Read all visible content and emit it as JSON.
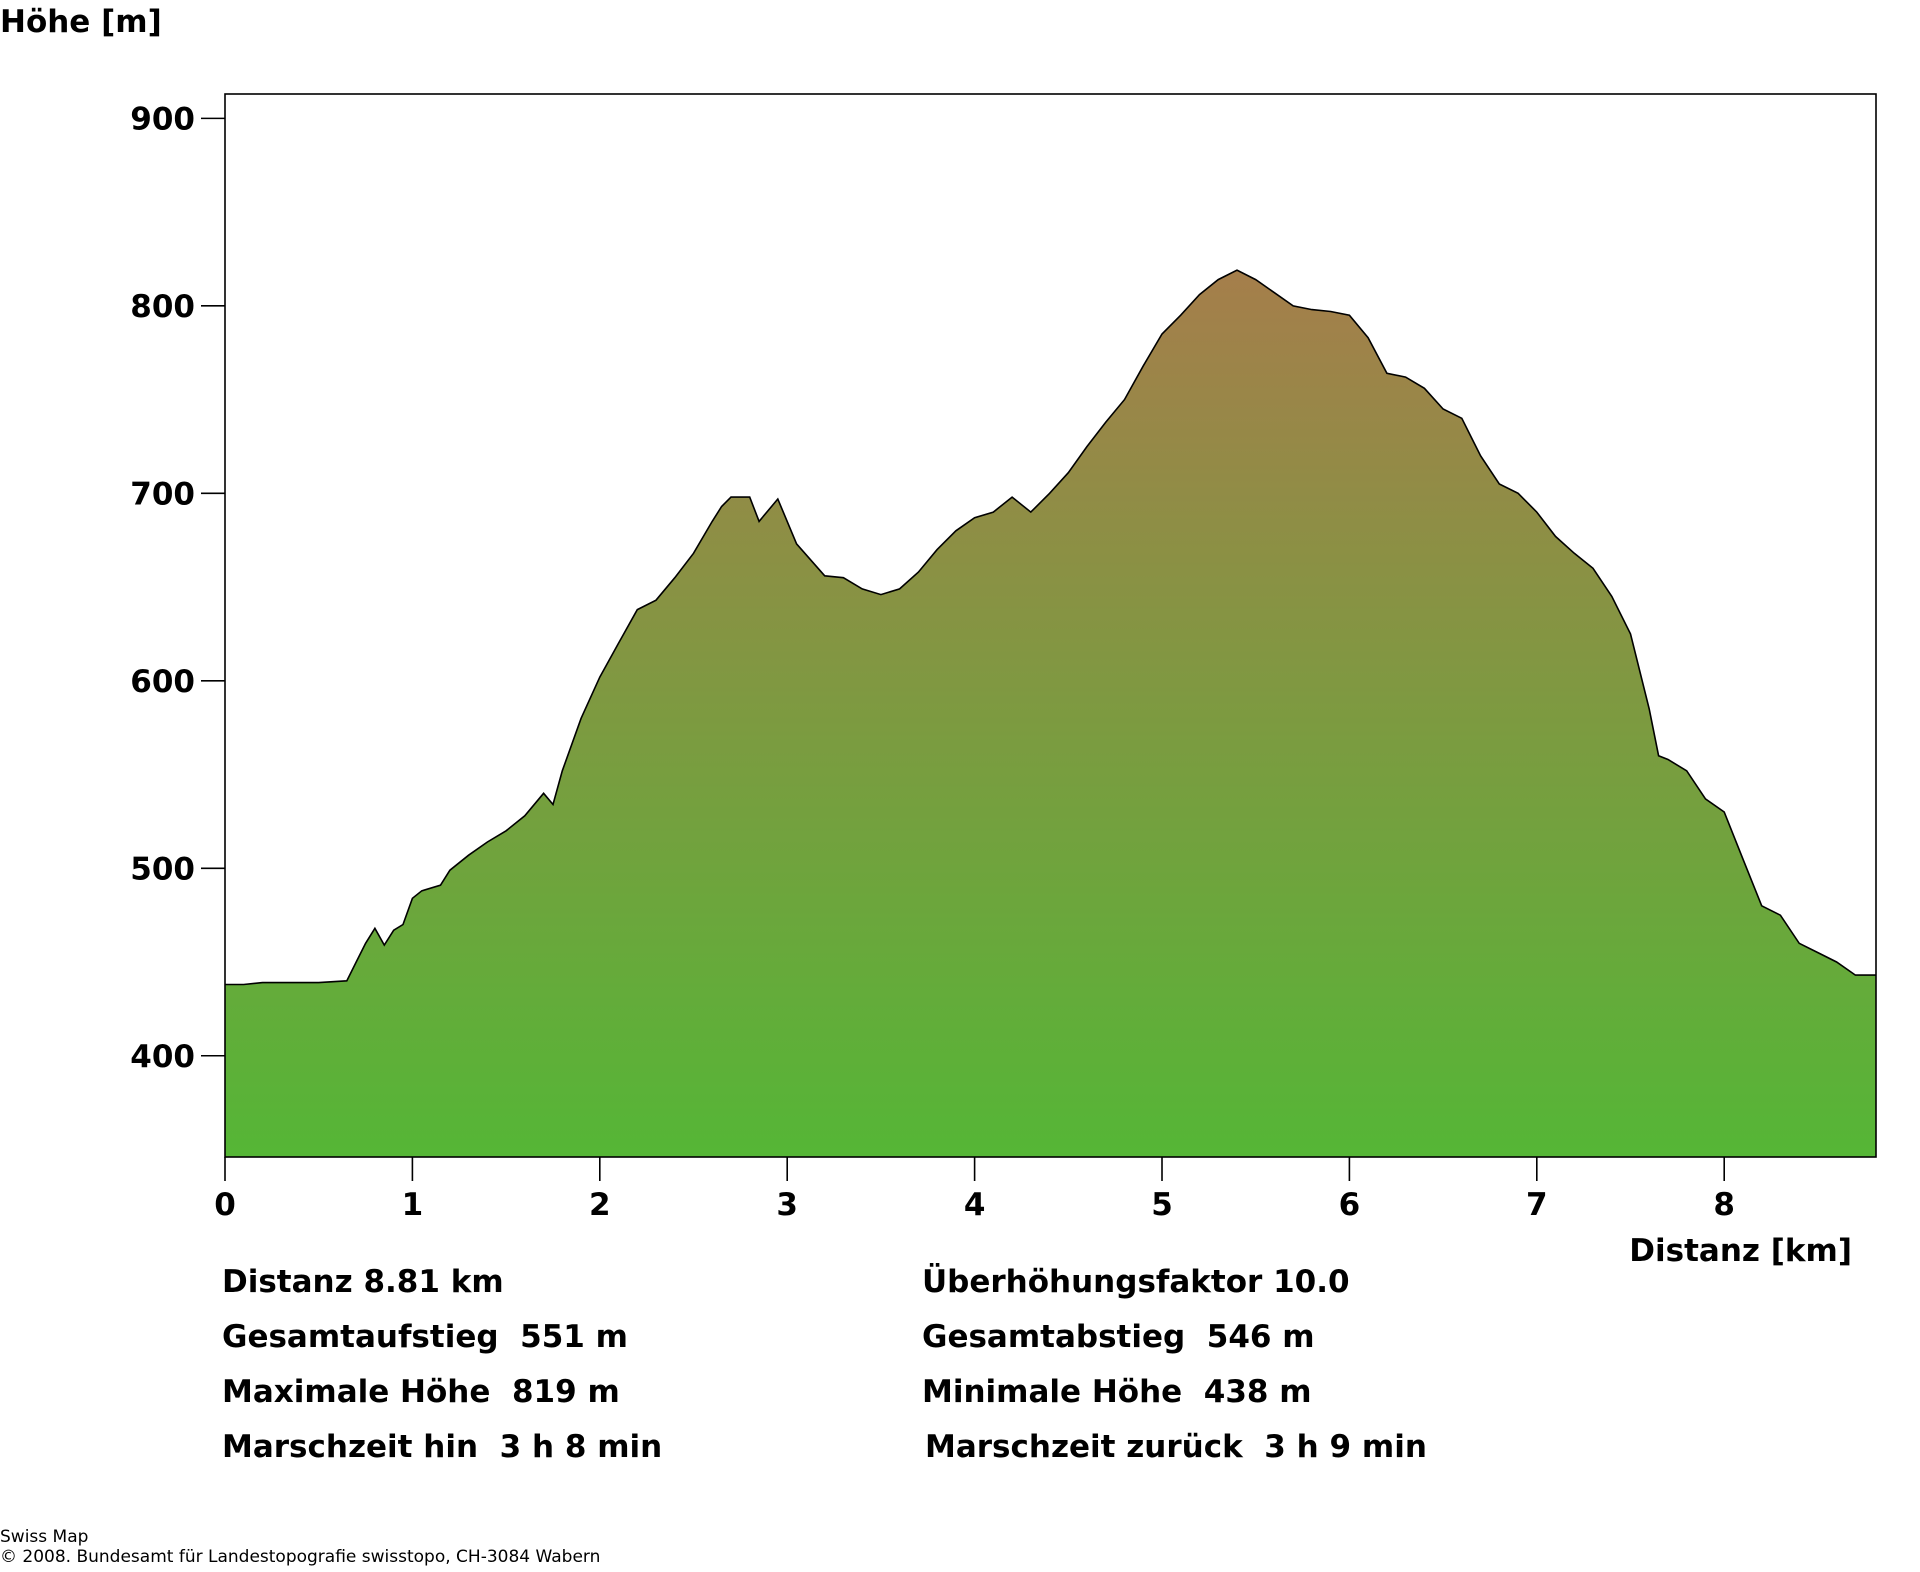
{
  "chart_data": {
    "type": "area",
    "ylabel": "Höhe [m]",
    "xlabel": "Distanz [km]",
    "xlim": [
      0,
      8.81
    ],
    "ylim": [
      346,
      913
    ],
    "x_ticks": [
      "0",
      "1",
      "2",
      "3",
      "4",
      "5",
      "6",
      "7",
      "8"
    ],
    "y_ticks": [
      "400",
      "500",
      "600",
      "700",
      "800",
      "900"
    ],
    "fill_colors": {
      "top": "#a57e4b",
      "bottom": "#55b636"
    },
    "grid": false,
    "x": [
      0,
      0.1,
      0.2,
      0.5,
      0.65,
      0.7,
      0.75,
      0.8,
      0.85,
      0.9,
      0.95,
      1.0,
      1.05,
      1.15,
      1.2,
      1.3,
      1.4,
      1.5,
      1.6,
      1.7,
      1.75,
      1.8,
      1.9,
      2.0,
      2.1,
      2.2,
      2.3,
      2.4,
      2.5,
      2.6,
      2.65,
      2.7,
      2.8,
      2.85,
      2.95,
      3.05,
      3.2,
      3.3,
      3.4,
      3.5,
      3.6,
      3.7,
      3.8,
      3.9,
      4.0,
      4.1,
      4.2,
      4.3,
      4.4,
      4.5,
      4.6,
      4.7,
      4.8,
      4.9,
      5.0,
      5.1,
      5.2,
      5.3,
      5.4,
      5.5,
      5.6,
      5.7,
      5.8,
      5.9,
      6.0,
      6.1,
      6.2,
      6.3,
      6.4,
      6.5,
      6.6,
      6.65,
      6.7,
      6.8,
      6.9,
      7.0,
      7.1,
      7.2,
      7.3,
      7.4,
      7.5,
      7.6,
      7.65,
      7.7,
      7.8,
      7.9,
      8.0,
      8.1,
      8.2,
      8.3,
      8.4,
      8.5,
      8.6,
      8.7,
      8.81
    ],
    "values": [
      438,
      438,
      439,
      439,
      440,
      450,
      460,
      468,
      459,
      467,
      470,
      484,
      488,
      491,
      499,
      507,
      514,
      520,
      528,
      540,
      534,
      552,
      580,
      602,
      620,
      638,
      643,
      655,
      668,
      685,
      693,
      698,
      698,
      685,
      697,
      673,
      656,
      655,
      649,
      646,
      649,
      658,
      670,
      680,
      687,
      690,
      698,
      690,
      700,
      711,
      725,
      738,
      750,
      768,
      785,
      795,
      806,
      814,
      819,
      814,
      807,
      800,
      798,
      797,
      795,
      783,
      764,
      762,
      756,
      745,
      740,
      730,
      720,
      705,
      700,
      690,
      677,
      668,
      660,
      645,
      625,
      585,
      560,
      558,
      552,
      537,
      530,
      505,
      480,
      475,
      460,
      455,
      450,
      443,
      443
    ]
  },
  "stats": {
    "distanz": "Distanz 8.81 km",
    "ueberhoehung": "Überhöhungsfaktor 10.0",
    "aufstieg": "Gesamtaufstieg  551 m",
    "abstieg": "Gesamtabstieg  546 m",
    "max_hoehe": "Maximale Höhe  819 m",
    "min_hoehe": "Minimale Höhe  438 m",
    "marsch_hin": "Marschzeit hin  3 h 8 min",
    "marsch_zurueck": "Marschzeit zurück  3 h 9 min"
  },
  "footer": {
    "line1": "Swiss Map",
    "line2": "© 2008. Bundesamt für Landestopografie swisstopo, CH-3084 Wabern"
  }
}
